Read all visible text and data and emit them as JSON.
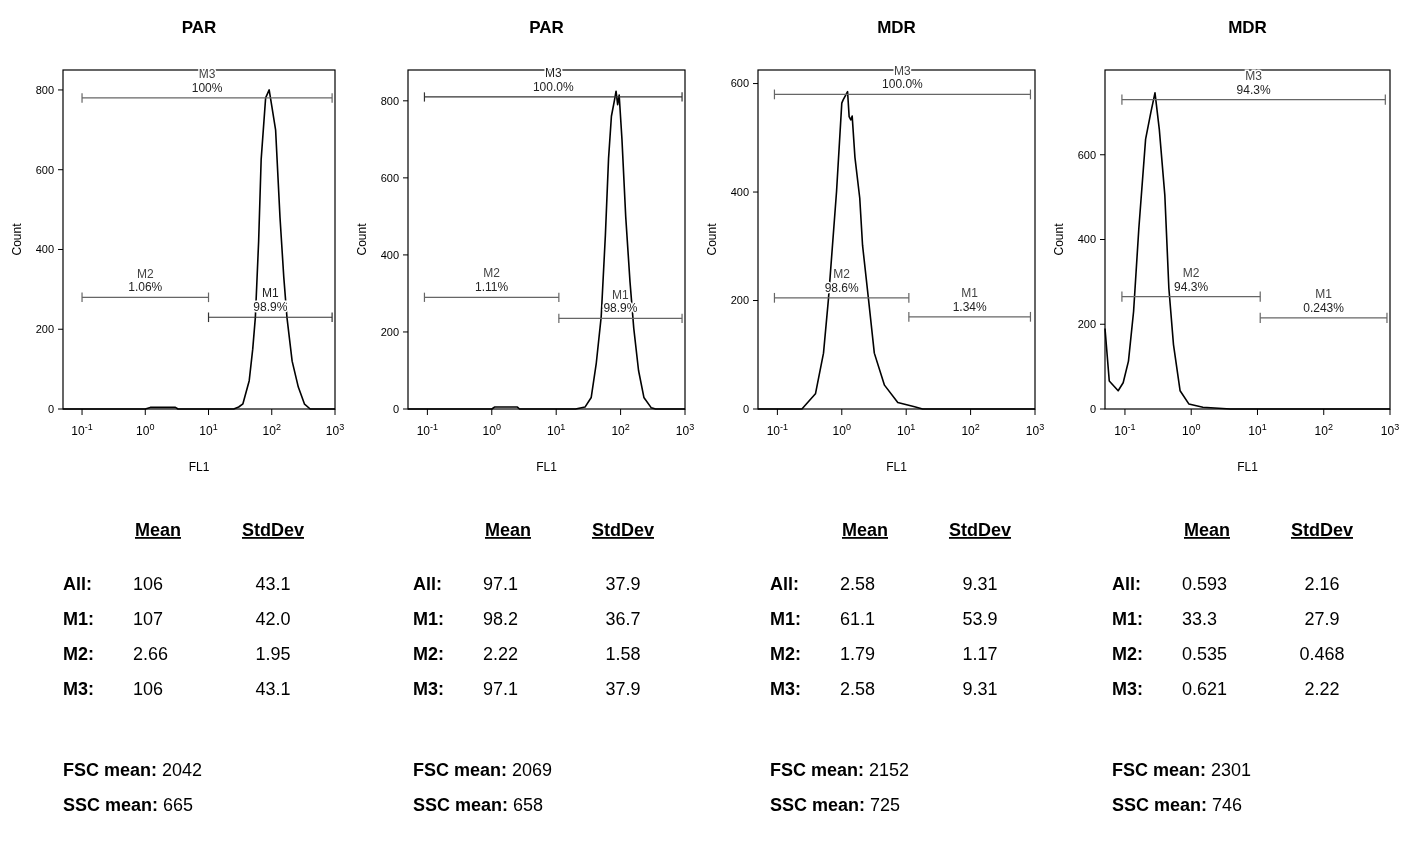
{
  "chart_data": [
    {
      "type": "line",
      "title": "PAR",
      "xlabel": "FL1",
      "ylabel": "Count",
      "log": "x",
      "xlim": [
        0.05,
        1000
      ],
      "ylim": [
        0,
        850
      ],
      "xticks": [
        {
          "value": 0.1,
          "label": "10$^{-1}$"
        },
        {
          "value": 1,
          "label": "10$^{0}$"
        },
        {
          "value": 10,
          "label": "10$^{1}$"
        },
        {
          "value": 100,
          "label": "10$^{2}$"
        },
        {
          "value": 1000,
          "label": "10$^{3}$"
        }
      ],
      "yticks": [
        0,
        200,
        400,
        600,
        800
      ],
      "series": [
        {
          "color": "#000000",
          "x": [
            0.05,
            1,
            1.2,
            3,
            3.3,
            25,
            30,
            35,
            44,
            50,
            55,
            62,
            68,
            80,
            91,
            100,
            115,
            135,
            155,
            174,
            210,
            263,
            330,
            405,
            1000
          ],
          "values": [
            0,
            0,
            4,
            4,
            0,
            0,
            5,
            13,
            71,
            150,
            229,
            420,
            626,
            780,
            800,
            760,
            700,
            480,
            330,
            229,
            120,
            55,
            12,
            0,
            0
          ]
        },
        {
          "name": "M3",
          "color": "#666666",
          "x": [
            0.1,
            900
          ],
          "values": [
            780,
            780
          ],
          "errors": [
            12,
            12
          ]
        },
        {
          "name": "M2",
          "color": "#666666",
          "x": [
            0.1,
            10
          ],
          "values": [
            280,
            280
          ],
          "errors": [
            12,
            12
          ]
        },
        {
          "name": "M1",
          "color": "#333333",
          "x": [
            10,
            900
          ],
          "values": [
            230,
            230
          ],
          "errors": [
            12,
            12
          ]
        }
      ],
      "annotations": [
        "100%",
        "1.06%",
        "98.9%"
      ]
    },
    {
      "type": "line",
      "title": "PAR",
      "xlabel": "FL1",
      "ylabel": "Count",
      "log": "x",
      "xlim": [
        0.05,
        1000
      ],
      "ylim": [
        0,
        880
      ],
      "xticks": [
        {
          "value": 0.1,
          "label": "10$^{-1}$"
        },
        {
          "value": 1,
          "label": "10$^{0}$"
        },
        {
          "value": 10,
          "label": "10$^{1}$"
        },
        {
          "value": 100,
          "label": "10$^{2}$"
        },
        {
          "value": 1000,
          "label": "10$^{3}$"
        }
      ],
      "yticks": [
        0,
        200,
        400,
        600,
        800
      ],
      "series": [
        {
          "color": "#000000",
          "x": [
            0.05,
            1,
            1.1,
            2.5,
            2.7,
            20,
            28,
            35,
            42,
            50,
            58,
            65,
            72,
            80,
            85,
            90,
            95,
            105,
            120,
            140,
            160,
            190,
            230,
            300,
            350,
            1000
          ],
          "values": [
            0,
            0,
            5,
            5,
            0,
            0,
            5,
            30,
            120,
            240,
            450,
            650,
            760,
            800,
            825,
            790,
            815,
            700,
            500,
            330,
            210,
            100,
            30,
            3,
            0,
            0
          ]
        },
        {
          "name": "M3",
          "color": "#333333",
          "x": [
            0.09,
            900
          ],
          "values": [
            810,
            810
          ],
          "errors": [
            12,
            12
          ]
        },
        {
          "name": "M2",
          "color": "#666666",
          "x": [
            0.09,
            11
          ],
          "values": [
            290,
            290
          ],
          "errors": [
            12,
            12
          ]
        },
        {
          "name": "M1",
          "color": "#666666",
          "x": [
            11,
            900
          ],
          "values": [
            235,
            235
          ],
          "errors": [
            12,
            12
          ]
        }
      ],
      "annotations": [
        "100.0%",
        "1.11%",
        "98.9%"
      ]
    },
    {
      "type": "line",
      "title": "MDR",
      "xlabel": "FL1",
      "ylabel": "Count",
      "log": "x",
      "xlim": [
        0.05,
        1000
      ],
      "ylim": [
        0,
        625
      ],
      "xticks": [
        {
          "value": 0.1,
          "label": "10$^{-1}$"
        },
        {
          "value": 1,
          "label": "10$^{0}$"
        },
        {
          "value": 10,
          "label": "10$^{1}$"
        },
        {
          "value": 100,
          "label": "10$^{2}$"
        },
        {
          "value": 1000,
          "label": "10$^{3}$"
        }
      ],
      "yticks": [
        0,
        200,
        400,
        600
      ],
      "series": [
        {
          "color": "#000000",
          "x": [
            0.05,
            0.24,
            0.39,
            0.52,
            0.62,
            0.83,
            1.0,
            1.05,
            1.23,
            1.3,
            1.38,
            1.45,
            1.6,
            1.9,
            2.1,
            2.6,
            3.2,
            4.6,
            7.4,
            13.5,
            18,
            1000
          ],
          "values": [
            0,
            0,
            28,
            103,
            202,
            402,
            564,
            570,
            585,
            539,
            533,
            540,
            464,
            389,
            302,
            202,
            103,
            44,
            12,
            4,
            0,
            0
          ]
        },
        {
          "name": "M3",
          "color": "#666666",
          "x": [
            0.09,
            850
          ],
          "values": [
            580,
            580
          ],
          "errors": [
            9,
            9
          ]
        },
        {
          "name": "M2",
          "color": "#666666",
          "x": [
            0.09,
            11
          ],
          "values": [
            205,
            205
          ],
          "errors": [
            9,
            9
          ]
        },
        {
          "name": "M1",
          "color": "#666666",
          "x": [
            11,
            850
          ],
          "values": [
            170,
            170
          ],
          "errors": [
            9,
            9
          ]
        }
      ],
      "annotations": [
        "100.0%",
        "98.6%",
        "1.34%"
      ]
    },
    {
      "type": "line",
      "title": "MDR",
      "xlabel": "FL1",
      "ylabel": "Count",
      "log": "x",
      "xlim": [
        0.05,
        1000
      ],
      "ylim": [
        0,
        800
      ],
      "xticks": [
        {
          "value": 0.1,
          "label": "10$^{-1}$"
        },
        {
          "value": 1,
          "label": "10$^{0}$"
        },
        {
          "value": 10,
          "label": "10$^{1}$"
        },
        {
          "value": 100,
          "label": "10$^{2}$"
        },
        {
          "value": 1000,
          "label": "10$^{3}$"
        }
      ],
      "yticks": [
        0,
        200,
        400,
        600
      ],
      "series": [
        {
          "color": "#000000",
          "x": [
            0.05,
            0.058,
            0.079,
            0.094,
            0.113,
            0.135,
            0.162,
            0.205,
            0.246,
            0.284,
            0.33,
            0.4,
            0.46,
            0.54,
            0.68,
            0.92,
            1.5,
            3.9,
            1000
          ],
          "values": [
            190,
            66,
            43,
            62,
            113,
            230,
            426,
            637,
            700,
            746,
            660,
            504,
            285,
            152,
            43,
            12,
            4,
            0,
            0
          ]
        },
        {
          "name": "M3",
          "color": "#666666",
          "x": [
            0.09,
            850
          ],
          "values": [
            730,
            730
          ],
          "errors": [
            12,
            12
          ]
        },
        {
          "name": "M2",
          "color": "#666666",
          "x": [
            0.09,
            11
          ],
          "values": [
            265,
            265
          ],
          "errors": [
            12,
            12
          ]
        },
        {
          "name": "M1",
          "color": "#666666",
          "x": [
            11,
            900
          ],
          "values": [
            215,
            215
          ],
          "errors": [
            12,
            12
          ]
        }
      ],
      "annotations": [
        "94.3%",
        "94.3%",
        "0.243%"
      ]
    },
    {
      "type": "other",
      "annotations": [
        "Mean",
        "StdDev",
        "All:",
        "106",
        "43.1",
        "M1:",
        "107",
        "42.0",
        "M2:",
        "2.66",
        "1.95",
        "M3:",
        "106",
        "43.1",
        "FSC mean:",
        "2042",
        "SSC mean:",
        "665"
      ]
    },
    {
      "type": "other",
      "annotations": [
        "Mean",
        "StdDev",
        "All:",
        "97.1",
        "37.9",
        "M1:",
        "98.2",
        "36.7",
        "M2:",
        "2.22",
        "1.58",
        "M3:",
        "97.1",
        "37.9",
        "FSC mean:",
        "2069",
        "SSC mean:",
        "658"
      ]
    },
    {
      "type": "other",
      "annotations": [
        "Mean",
        "StdDev",
        "All:",
        "2.58",
        "9.31",
        "M1:",
        "61.1",
        "53.9",
        "M2:",
        "1.79",
        "1.17",
        "M3:",
        "2.58",
        "9.31",
        "FSC mean:",
        "2152",
        "SSC mean:",
        "725"
      ]
    },
    {
      "type": "other",
      "annotations": [
        "Mean",
        "StdDev",
        "All:",
        "0.593",
        "2.16",
        "M1:",
        "33.3",
        "27.9",
        "M2:",
        "0.535",
        "0.468",
        "M3:",
        "0.621",
        "2.22",
        "FSC mean:",
        "2301",
        "SSC mean:",
        "746"
      ]
    }
  ]
}
